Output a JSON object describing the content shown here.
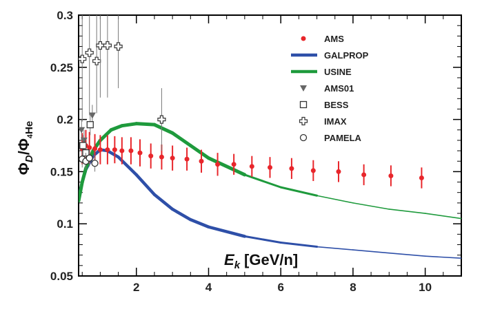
{
  "chart_data": {
    "type": "scatter",
    "xlabel": "[GeV/n]",
    "xlabel_symbol": "E",
    "xlabel_subscript": "k",
    "ylabel": "Φ_D/Φ_4He",
    "xlim": [
      0.4,
      11
    ],
    "ylim": [
      0.05,
      0.3
    ],
    "xticks": [
      2,
      4,
      6,
      8,
      10
    ],
    "yticks": [
      0.05,
      0.1,
      0.15,
      0.2,
      0.25,
      0.3
    ],
    "ytick_labels": [
      "0.05",
      "0.1",
      "0.15",
      "0.2",
      "0.25",
      "0.3"
    ],
    "legend_position": "top-right",
    "series": [
      {
        "name": "AMS",
        "kind": "points",
        "color": "#e8262b",
        "marker": "filled-circle",
        "x": [
          0.5,
          0.6,
          0.7,
          0.85,
          1.0,
          1.2,
          1.4,
          1.6,
          1.85,
          2.1,
          2.4,
          2.7,
          3.0,
          3.4,
          3.8,
          4.25,
          4.7,
          5.2,
          5.7,
          6.3,
          6.9,
          7.6,
          8.3,
          9.05,
          9.9
        ],
        "y": [
          0.172,
          0.175,
          0.173,
          0.172,
          0.171,
          0.171,
          0.171,
          0.17,
          0.17,
          0.168,
          0.165,
          0.164,
          0.163,
          0.162,
          0.16,
          0.157,
          0.157,
          0.155,
          0.154,
          0.153,
          0.151,
          0.15,
          0.147,
          0.146,
          0.144
        ],
        "err": [
          0.015,
          0.015,
          0.015,
          0.014,
          0.014,
          0.014,
          0.013,
          0.013,
          0.013,
          0.013,
          0.012,
          0.012,
          0.012,
          0.011,
          0.011,
          0.011,
          0.01,
          0.01,
          0.01,
          0.01,
          0.01,
          0.01,
          0.01,
          0.01,
          0.01
        ]
      },
      {
        "name": "GALPROP",
        "kind": "line",
        "color": "#2e4fa8",
        "x": [
          0.4,
          0.5,
          0.6,
          0.8,
          1.0,
          1.2,
          1.5,
          2.0,
          2.5,
          3.0,
          3.5,
          4.0,
          5.0,
          6.0,
          7.0,
          8.0,
          9.0,
          10.0,
          11.0
        ],
        "y": [
          0.125,
          0.14,
          0.152,
          0.165,
          0.171,
          0.17,
          0.164,
          0.147,
          0.128,
          0.114,
          0.104,
          0.097,
          0.088,
          0.082,
          0.078,
          0.075,
          0.072,
          0.069,
          0.067
        ]
      },
      {
        "name": "USINE",
        "kind": "line",
        "color": "#1e9a3c",
        "x": [
          0.4,
          0.5,
          0.6,
          0.8,
          1.0,
          1.3,
          1.6,
          2.0,
          2.5,
          3.0,
          3.5,
          4.0,
          5.0,
          6.0,
          7.0,
          8.0,
          9.0,
          10.0,
          11.0
        ],
        "y": [
          0.122,
          0.14,
          0.153,
          0.17,
          0.18,
          0.19,
          0.194,
          0.196,
          0.195,
          0.187,
          0.175,
          0.163,
          0.147,
          0.135,
          0.127,
          0.12,
          0.114,
          0.11,
          0.105
        ]
      },
      {
        "name": "AMS01",
        "kind": "points",
        "color": "#666666",
        "marker": "triangle-down",
        "x": [
          0.48,
          0.55,
          0.78
        ],
        "y": [
          0.19,
          0.18,
          0.204
        ],
        "err": [
          0.01,
          0.01,
          0.01
        ]
      },
      {
        "name": "BESS",
        "kind": "points",
        "color": "#333333",
        "marker": "open-square",
        "x": [
          0.52,
          0.6,
          0.72
        ],
        "y": [
          0.175,
          0.168,
          0.195
        ],
        "err": [
          0.01,
          0.01,
          0.01
        ]
      },
      {
        "name": "IMAX",
        "kind": "points",
        "color": "#333333",
        "marker": "open-cross",
        "x": [
          0.5,
          0.7,
          0.9,
          1.0,
          1.2,
          1.5,
          2.7
        ],
        "y": [
          0.258,
          0.264,
          0.256,
          0.271,
          0.271,
          0.27,
          0.2
        ],
        "err": [
          0.06,
          0.06,
          0.05,
          0.05,
          0.05,
          0.04,
          0.03
        ]
      },
      {
        "name": "PAMELA",
        "kind": "points",
        "color": "#333333",
        "marker": "open-circle",
        "x": [
          0.5,
          0.6,
          0.7,
          0.85
        ],
        "y": [
          0.162,
          0.16,
          0.163,
          0.158
        ],
        "err": [
          0.008,
          0.008,
          0.008,
          0.008
        ]
      }
    ]
  }
}
